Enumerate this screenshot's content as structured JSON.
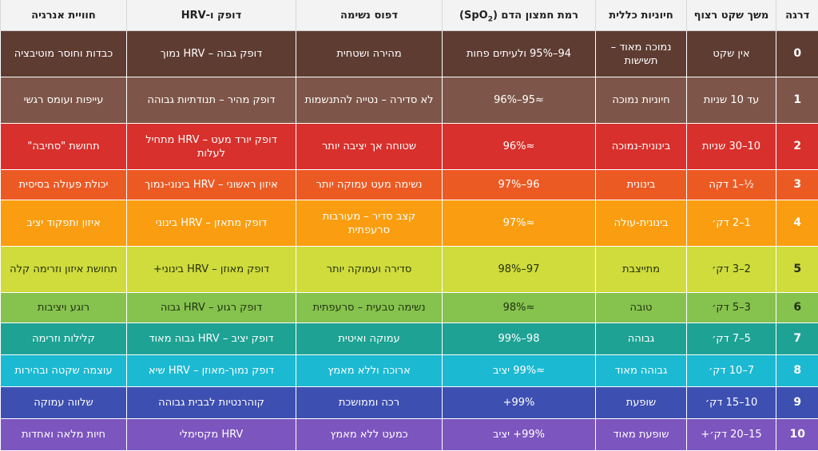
{
  "headers": {
    "level": "דרגה",
    "duration": "משך שקט רצוף",
    "vitality": "חיוניות כללית",
    "spo2_pre": "רמת חמצון הדם (SpO",
    "spo2_sub": "2",
    "spo2_post": ")",
    "breathing": "דפוס נשימה",
    "pulse": "דופק ו-HRV",
    "energy": "חוויית אנרגיה"
  },
  "rows": [
    {
      "level": "0",
      "duration": "אין שקט",
      "vitality": "נמוכה מאוד – תשישות",
      "spo2": "94–95% ולעיתים פחות",
      "breathing": "מהירה ושטחית",
      "pulse": "דופק גבוה – HRV נמוך",
      "energy": "כבדות וחוסר מוטיבציה",
      "color": "#5e3c32",
      "text": "#ffffff"
    },
    {
      "level": "1",
      "duration": "עד 10 שניות",
      "vitality": "חיוניות נמוכה",
      "spo2": "≈95–96%",
      "breathing": "לא סדירה – נטייה להתנשמות",
      "pulse": "דופק מהיר – תנודתיות גבוהה",
      "energy": "עייפות ועומס רגשי",
      "color": "#7e5649",
      "text": "#ffffff"
    },
    {
      "level": "2",
      "duration": "10–30 שניות",
      "vitality": "בינונית-נמוכה",
      "spo2": "≈96%",
      "breathing": "שטוחה אך יציבה יותר",
      "pulse": "דופק יורד מעט – HRV מתחיל לעלות",
      "energy": "תחושת \"סחיבה\"",
      "color": "#d8302c",
      "text": "#ffffff"
    },
    {
      "level": "3",
      "duration": "½–1 דקה",
      "vitality": "בינונית",
      "spo2": "96–97%",
      "breathing": "נשימה מעט עמוקה יותר",
      "pulse": "איזון ראשוני – HRV בינוני-נמוך",
      "energy": "יכולת פעולה בסיסית",
      "color": "#ec5a24",
      "text": "#ffffff"
    },
    {
      "level": "4",
      "duration": "1–2 דק׳",
      "vitality": "בינונית-עולה",
      "spo2": "≈97%",
      "breathing": "קצב סדיר – מעורבות סרעפתית",
      "pulse": "דופק מתאזן – HRV בינוני",
      "energy": "איזון ותפקוד יציב",
      "color": "#fa9d10",
      "text": "#ffffff"
    },
    {
      "level": "5",
      "duration": "2–3 דק׳",
      "vitality": "מתייצבת",
      "spo2": "97–98%",
      "breathing": "סדירה ועמוקה יותר",
      "pulse": "דופק מאוזן – HRV בינוני+",
      "energy": "תחושת איזון וזרימה קלה",
      "color": "#cfdc3c",
      "text": "#26320a"
    },
    {
      "level": "6",
      "duration": "3–5 דק׳",
      "vitality": "טובה",
      "spo2": "≈98%",
      "breathing": "נשימה טבעית – סרעפתית",
      "pulse": "דופק רגוע – HRV גבוה",
      "energy": "רוגע ויציבות",
      "color": "#86c24e",
      "text": "#1f3310"
    },
    {
      "level": "7",
      "duration": "5–7 דק׳",
      "vitality": "גבוהה",
      "spo2": "98–99%",
      "breathing": "עמוקה ואיטית",
      "pulse": "דופק יציב – HRV גבוה מאוד",
      "energy": "קלילות וזרימה",
      "color": "#1ea294",
      "text": "#ffffff"
    },
    {
      "level": "8",
      "duration": "7–10 דק׳",
      "vitality": "גבוהה מאוד",
      "spo2": "≈99% יציב",
      "breathing": "ארוכה וללא מאמץ",
      "pulse": "דופק נמוך-מאוזן – HRV שיא",
      "energy": "עוצמה שקטה ובהירות",
      "color": "#1cb9d2",
      "text": "#ffffff"
    },
    {
      "level": "9",
      "duration": "10–15 דק׳",
      "vitality": "שופעת",
      "spo2": "99%+",
      "breathing": "רכה וממושכת",
      "pulse": "קוהרנטיות לבבית גבוהה",
      "energy": "שלווה עמוקה",
      "color": "#3d4fb0",
      "text": "#ffffff"
    },
    {
      "level": "10",
      "duration": "15–20 דק׳+",
      "vitality": "שופעת מאוד",
      "spo2": "99%+ יציב",
      "breathing": "כמעט ללא מאמץ",
      "pulse": "HRV מקסימלי",
      "energy": "חיות מלאה ואחדות",
      "color": "#7d55be",
      "text": "#ffffff"
    }
  ]
}
